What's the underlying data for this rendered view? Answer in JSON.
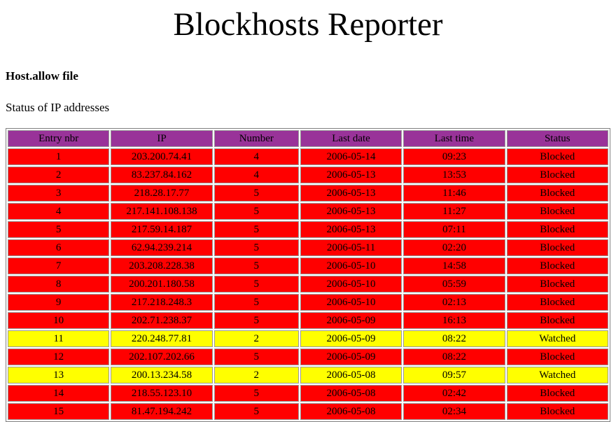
{
  "page": {
    "title": "Blockhosts Reporter",
    "section_heading": "Host.allow file",
    "subtitle": "Status of IP addresses"
  },
  "colors": {
    "header_bg": "#993399",
    "blocked_bg": "#ff0000",
    "watched_bg": "#ffff00"
  },
  "table": {
    "columns": [
      "Entry nbr",
      "IP",
      "Number",
      "Last date",
      "Last time",
      "Status"
    ],
    "rows": [
      {
        "entry": "1",
        "ip": "203.200.74.41",
        "number": "4",
        "date": "2006-05-14",
        "time": "09:23",
        "status": "Blocked"
      },
      {
        "entry": "2",
        "ip": "83.237.84.162",
        "number": "4",
        "date": "2006-05-13",
        "time": "13:53",
        "status": "Blocked"
      },
      {
        "entry": "3",
        "ip": "218.28.17.77",
        "number": "5",
        "date": "2006-05-13",
        "time": "11:46",
        "status": "Blocked"
      },
      {
        "entry": "4",
        "ip": "217.141.108.138",
        "number": "5",
        "date": "2006-05-13",
        "time": "11:27",
        "status": "Blocked"
      },
      {
        "entry": "5",
        "ip": "217.59.14.187",
        "number": "5",
        "date": "2006-05-13",
        "time": "07:11",
        "status": "Blocked"
      },
      {
        "entry": "6",
        "ip": "62.94.239.214",
        "number": "5",
        "date": "2006-05-11",
        "time": "02:20",
        "status": "Blocked"
      },
      {
        "entry": "7",
        "ip": "203.208.228.38",
        "number": "5",
        "date": "2006-05-10",
        "time": "14:58",
        "status": "Blocked"
      },
      {
        "entry": "8",
        "ip": "200.201.180.58",
        "number": "5",
        "date": "2006-05-10",
        "time": "05:59",
        "status": "Blocked"
      },
      {
        "entry": "9",
        "ip": "217.218.248.3",
        "number": "5",
        "date": "2006-05-10",
        "time": "02:13",
        "status": "Blocked"
      },
      {
        "entry": "10",
        "ip": "202.71.238.37",
        "number": "5",
        "date": "2006-05-09",
        "time": "16:13",
        "status": "Blocked"
      },
      {
        "entry": "11",
        "ip": "220.248.77.81",
        "number": "2",
        "date": "2006-05-09",
        "time": "08:22",
        "status": "Watched"
      },
      {
        "entry": "12",
        "ip": "202.107.202.66",
        "number": "5",
        "date": "2006-05-09",
        "time": "08:22",
        "status": "Blocked"
      },
      {
        "entry": "13",
        "ip": "200.13.234.58",
        "number": "2",
        "date": "2006-05-08",
        "time": "09:57",
        "status": "Watched"
      },
      {
        "entry": "14",
        "ip": "218.55.123.10",
        "number": "5",
        "date": "2006-05-08",
        "time": "02:42",
        "status": "Blocked"
      },
      {
        "entry": "15",
        "ip": "81.47.194.242",
        "number": "5",
        "date": "2006-05-08",
        "time": "02:34",
        "status": "Blocked"
      }
    ]
  }
}
